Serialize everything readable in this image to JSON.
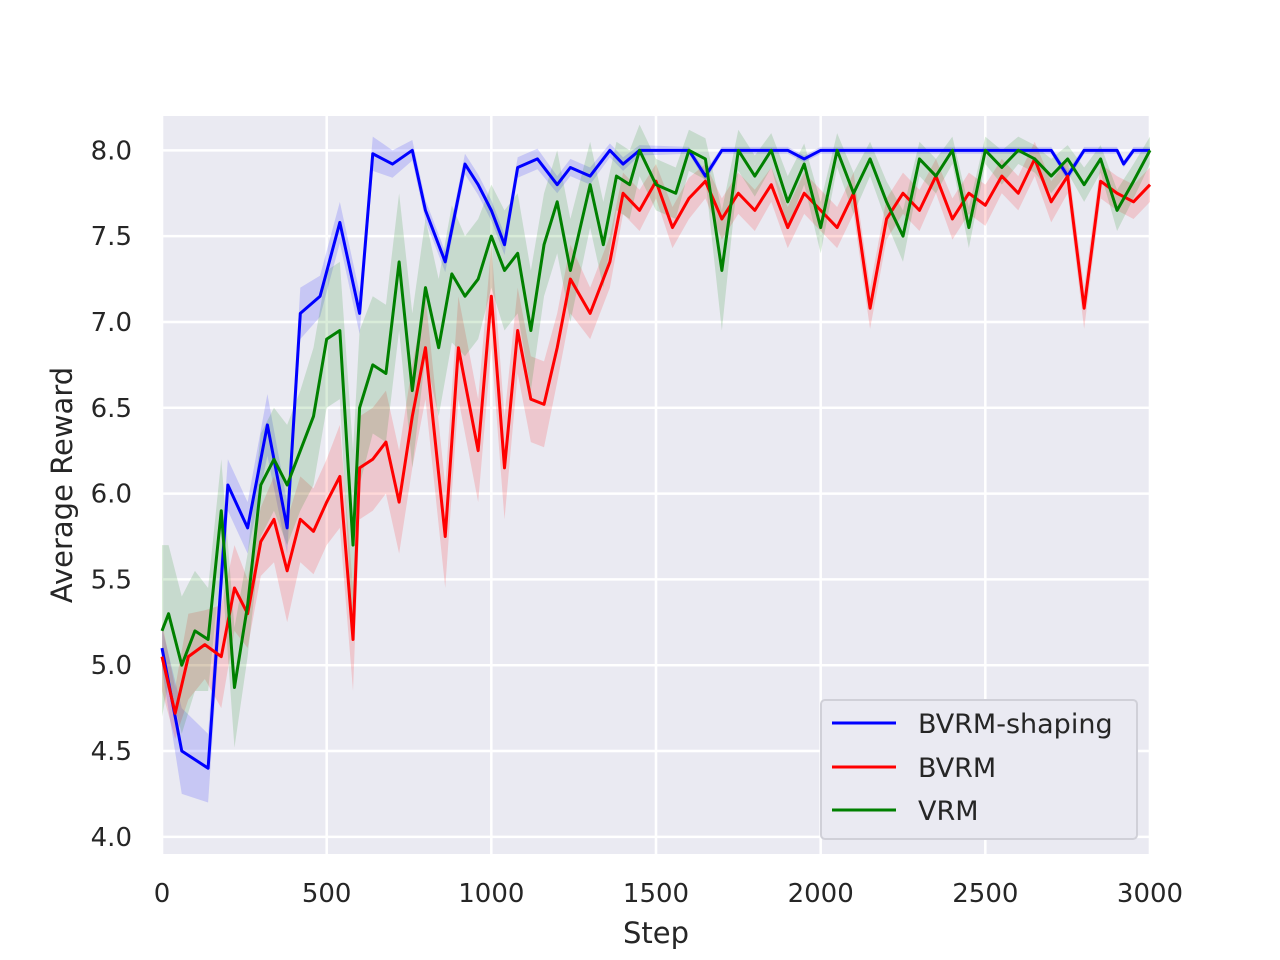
{
  "chart_data": {
    "type": "line",
    "title": "",
    "xlabel": "Step",
    "ylabel": "Average Reward",
    "xlim": [
      0,
      3000
    ],
    "ylim": [
      3.9,
      8.2
    ],
    "xticks": [
      0,
      500,
      1000,
      1500,
      2000,
      2500,
      3000
    ],
    "xtick_labels": [
      "0",
      "500",
      "1000",
      "1500",
      "2000",
      "2500",
      "3000"
    ],
    "yticks": [
      4.0,
      4.5,
      5.0,
      5.5,
      6.0,
      6.5,
      7.0,
      7.5,
      8.0
    ],
    "ytick_labels": [
      "4.0",
      "4.5",
      "5.0",
      "5.5",
      "6.0",
      "6.5",
      "7.0",
      "7.5",
      "8.0"
    ],
    "grid": true,
    "legend_position": "bottom-right",
    "background": "#eaeaf2",
    "series": [
      {
        "name": "BVRM-shaping",
        "color": "#0000ff",
        "x": [
          0,
          60,
          140,
          200,
          260,
          320,
          380,
          420,
          480,
          540,
          600,
          640,
          700,
          760,
          800,
          860,
          920,
          960,
          1000,
          1040,
          1080,
          1140,
          1200,
          1240,
          1300,
          1360,
          1400,
          1450,
          1600,
          1650,
          1700,
          1800,
          1900,
          1950,
          2000,
          2500,
          2700,
          2750,
          2800,
          2900,
          2920,
          2950,
          3000
        ],
        "y": [
          5.1,
          4.5,
          4.4,
          6.05,
          5.8,
          6.4,
          5.8,
          7.05,
          7.15,
          7.58,
          7.05,
          7.98,
          7.92,
          8.0,
          7.65,
          7.35,
          7.92,
          7.8,
          7.65,
          7.45,
          7.9,
          7.95,
          7.8,
          7.9,
          7.85,
          8.0,
          7.92,
          8.0,
          8.0,
          7.85,
          8.0,
          8.0,
          8.0,
          7.95,
          8.0,
          8.0,
          8.0,
          7.85,
          8.0,
          8.0,
          7.92,
          8.0,
          8.0
        ],
        "band": [
          0.12,
          0.25,
          0.2,
          0.15,
          0.15,
          0.18,
          0.15,
          0.15,
          0.12,
          0.12,
          0.12,
          0.1,
          0.08,
          0.06,
          0.06,
          0.06,
          0.06,
          0.06,
          0.06,
          0.06,
          0.06,
          0.06,
          0.05,
          0.05,
          0.05,
          0.04,
          0.04,
          0.03,
          0.02,
          0.03,
          0.02,
          0.02,
          0.02,
          0.02,
          0.02,
          0.02,
          0.02,
          0.03,
          0.02,
          0.02,
          0.02,
          0.02,
          0.02
        ]
      },
      {
        "name": "BVRM",
        "color": "#ff0000",
        "x": [
          0,
          40,
          80,
          130,
          180,
          220,
          260,
          300,
          340,
          380,
          420,
          460,
          500,
          540,
          580,
          600,
          640,
          680,
          720,
          760,
          800,
          860,
          900,
          960,
          1000,
          1040,
          1080,
          1120,
          1160,
          1200,
          1240,
          1300,
          1360,
          1400,
          1450,
          1500,
          1550,
          1600,
          1650,
          1700,
          1750,
          1800,
          1850,
          1900,
          1950,
          2000,
          2050,
          2100,
          2150,
          2200,
          2250,
          2300,
          2350,
          2400,
          2450,
          2500,
          2550,
          2600,
          2650,
          2700,
          2750,
          2800,
          2850,
          2900,
          2950,
          3000
        ],
        "y": [
          5.05,
          4.72,
          5.05,
          5.12,
          5.05,
          5.45,
          5.3,
          5.72,
          5.85,
          5.55,
          5.85,
          5.78,
          5.95,
          6.1,
          5.15,
          6.15,
          6.2,
          6.3,
          5.95,
          6.45,
          6.85,
          5.75,
          6.85,
          6.25,
          7.15,
          6.15,
          6.95,
          6.55,
          6.52,
          6.85,
          7.25,
          7.05,
          7.35,
          7.75,
          7.65,
          7.82,
          7.55,
          7.72,
          7.82,
          7.6,
          7.75,
          7.65,
          7.8,
          7.55,
          7.75,
          7.65,
          7.55,
          7.75,
          7.08,
          7.6,
          7.75,
          7.65,
          7.85,
          7.6,
          7.75,
          7.68,
          7.85,
          7.75,
          7.95,
          7.7,
          7.85,
          7.08,
          7.82,
          7.75,
          7.7,
          7.8
        ],
        "band": [
          0.2,
          0.15,
          0.25,
          0.2,
          0.3,
          0.25,
          0.2,
          0.2,
          0.25,
          0.3,
          0.25,
          0.25,
          0.25,
          0.3,
          0.3,
          0.3,
          0.3,
          0.3,
          0.3,
          0.3,
          0.3,
          0.3,
          0.3,
          0.3,
          0.3,
          0.3,
          0.25,
          0.25,
          0.25,
          0.2,
          0.2,
          0.15,
          0.15,
          0.12,
          0.12,
          0.1,
          0.12,
          0.12,
          0.1,
          0.12,
          0.12,
          0.12,
          0.1,
          0.12,
          0.12,
          0.12,
          0.12,
          0.12,
          0.12,
          0.12,
          0.12,
          0.12,
          0.1,
          0.12,
          0.12,
          0.12,
          0.1,
          0.1,
          0.1,
          0.12,
          0.1,
          0.12,
          0.1,
          0.1,
          0.1,
          0.1
        ]
      },
      {
        "name": "VRM",
        "color": "#008000",
        "x": [
          0,
          20,
          60,
          100,
          140,
          180,
          220,
          260,
          300,
          340,
          380,
          420,
          460,
          500,
          540,
          580,
          600,
          640,
          680,
          720,
          760,
          800,
          840,
          880,
          920,
          960,
          1000,
          1040,
          1080,
          1120,
          1160,
          1200,
          1240,
          1300,
          1340,
          1380,
          1420,
          1450,
          1500,
          1560,
          1600,
          1650,
          1700,
          1750,
          1800,
          1850,
          1900,
          1950,
          2000,
          2050,
          2100,
          2150,
          2200,
          2250,
          2300,
          2350,
          2400,
          2450,
          2500,
          2550,
          2600,
          2650,
          2700,
          2750,
          2800,
          2850,
          2900,
          2950,
          3000
        ],
        "y": [
          5.2,
          5.3,
          5.0,
          5.2,
          5.15,
          5.9,
          4.87,
          5.35,
          6.05,
          6.2,
          6.05,
          6.25,
          6.45,
          6.9,
          6.95,
          5.7,
          6.5,
          6.75,
          6.7,
          7.35,
          6.6,
          7.2,
          6.85,
          7.28,
          7.15,
          7.25,
          7.5,
          7.3,
          7.4,
          6.95,
          7.45,
          7.7,
          7.3,
          7.8,
          7.45,
          7.85,
          7.8,
          8.0,
          7.8,
          7.75,
          8.0,
          7.95,
          7.3,
          8.0,
          7.85,
          8.0,
          7.7,
          7.92,
          7.55,
          8.0,
          7.75,
          7.95,
          7.7,
          7.5,
          7.95,
          7.85,
          8.0,
          7.55,
          8.0,
          7.9,
          8.0,
          7.95,
          7.85,
          7.95,
          7.8,
          7.95,
          7.65,
          7.82,
          8.0
        ],
        "band": [
          0.5,
          0.4,
          0.4,
          0.35,
          0.3,
          0.3,
          0.35,
          0.3,
          0.3,
          0.3,
          0.35,
          0.35,
          0.4,
          0.4,
          0.4,
          0.55,
          0.45,
          0.4,
          0.4,
          0.4,
          0.45,
          0.4,
          0.4,
          0.4,
          0.35,
          0.35,
          0.3,
          0.35,
          0.35,
          0.35,
          0.3,
          0.3,
          0.3,
          0.25,
          0.25,
          0.2,
          0.2,
          0.15,
          0.15,
          0.15,
          0.12,
          0.12,
          0.35,
          0.12,
          0.12,
          0.1,
          0.15,
          0.12,
          0.15,
          0.1,
          0.12,
          0.1,
          0.12,
          0.15,
          0.1,
          0.1,
          0.08,
          0.12,
          0.08,
          0.1,
          0.08,
          0.08,
          0.1,
          0.08,
          0.1,
          0.08,
          0.12,
          0.1,
          0.08
        ]
      }
    ]
  }
}
